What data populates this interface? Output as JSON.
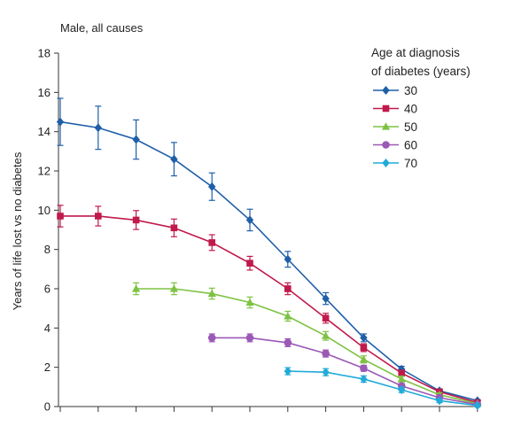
{
  "chart_data": {
    "type": "line",
    "title": "Male, all causes",
    "ylabel": "Years of life lost vs no diabetes",
    "xlabel": "",
    "ylim": [
      0,
      18
    ],
    "yticks": [
      0,
      2,
      4,
      6,
      8,
      10,
      12,
      14,
      16,
      18
    ],
    "x_count": 12,
    "error_bars": true,
    "legend": {
      "title_line1": "Age at diagnosis",
      "title_line2": "of diabetes (years)",
      "placement": "top-right"
    },
    "series": [
      {
        "name": "30",
        "color": "#1f5fa8",
        "marker": "diamond",
        "start_index": 0,
        "values": [
          14.5,
          14.2,
          13.6,
          12.6,
          11.2,
          9.5,
          7.5,
          5.5,
          3.5,
          1.9,
          0.8,
          0.3
        ],
        "errors": [
          1.2,
          1.1,
          1.0,
          0.85,
          0.7,
          0.55,
          0.4,
          0.3,
          0.2,
          0.15,
          0.1,
          0.05
        ]
      },
      {
        "name": "40",
        "color": "#c0194b",
        "marker": "square",
        "start_index": 0,
        "values": [
          9.7,
          9.7,
          9.5,
          9.1,
          8.35,
          7.3,
          6.0,
          4.5,
          3.0,
          1.7,
          0.75,
          0.2
        ],
        "errors": [
          0.55,
          0.5,
          0.48,
          0.45,
          0.4,
          0.35,
          0.3,
          0.25,
          0.2,
          0.15,
          0.1,
          0.05
        ]
      },
      {
        "name": "50",
        "color": "#7dc242",
        "marker": "triangle",
        "start_index": 2,
        "values": [
          6.0,
          6.0,
          5.75,
          5.3,
          4.6,
          3.6,
          2.4,
          1.4,
          0.6,
          0.15
        ],
        "errors": [
          0.3,
          0.3,
          0.28,
          0.28,
          0.25,
          0.22,
          0.18,
          0.14,
          0.1,
          0.05
        ]
      },
      {
        "name": "60",
        "color": "#9b59b6",
        "marker": "circle",
        "start_index": 4,
        "values": [
          3.5,
          3.5,
          3.25,
          2.7,
          1.95,
          1.05,
          0.45,
          0.1
        ],
        "errors": [
          0.2,
          0.2,
          0.2,
          0.18,
          0.15,
          0.12,
          0.1,
          0.05
        ]
      },
      {
        "name": "70",
        "color": "#22aad8",
        "marker": "diamond",
        "start_index": 6,
        "values": [
          1.8,
          1.75,
          1.4,
          0.85,
          0.3,
          0.05
        ],
        "errors": [
          0.18,
          0.18,
          0.16,
          0.14,
          0.1,
          0.05
        ]
      }
    ]
  }
}
